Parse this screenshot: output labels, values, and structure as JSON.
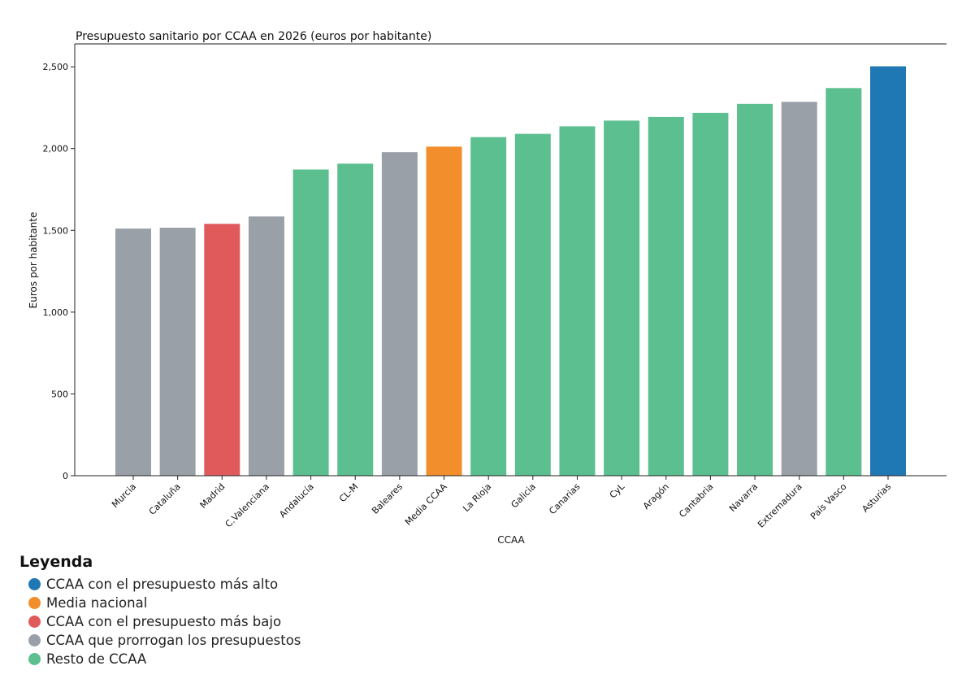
{
  "chart_data": {
    "type": "bar",
    "title": "Presupuesto sanitario por CCAA en 2026 (euros por habitante)",
    "xlabel": "CCAA",
    "ylabel": "Euros por habitante",
    "ylim": [
      0,
      2640
    ],
    "yticks": [
      0,
      500,
      1000,
      1500,
      2000,
      2500
    ],
    "ytick_labels": [
      "0",
      "500",
      "1,000",
      "1,500",
      "2,000",
      "2,500"
    ],
    "grid": false,
    "categories": [
      "Murcia",
      "Cataluña",
      "Madrid",
      "C.Valenciana",
      "Andalucía",
      "CL-M",
      "Baleares",
      "Media CCAA",
      "La Rioja",
      "Galicia",
      "Canarias",
      "CyL",
      "Aragón",
      "Cantabria",
      "Navarra",
      "Extremadura",
      "País Vasco",
      "Asturias"
    ],
    "values": [
      1511,
      1516,
      1540,
      1585,
      1872,
      1908,
      1978,
      2012,
      2070,
      2090,
      2136,
      2171,
      2193,
      2218,
      2273,
      2286,
      2370,
      2503
    ],
    "groups": [
      "gray",
      "gray",
      "red",
      "gray",
      "green",
      "green",
      "gray",
      "orange",
      "green",
      "green",
      "green",
      "green",
      "green",
      "green",
      "green",
      "gray",
      "green",
      "blue"
    ]
  },
  "colors": {
    "blue": "#1f77b4",
    "orange": "#f28e2b",
    "red": "#e05a5c",
    "gray": "#9aa0a8",
    "green": "#5cbf8f"
  },
  "legend": {
    "title": "Leyenda",
    "items": [
      {
        "label": "CCAA con el presupuesto más alto",
        "color": "#1f77b4"
      },
      {
        "label": "Media nacional",
        "color": "#f28e2b"
      },
      {
        "label": "CCAA con el presupuesto más bajo",
        "color": "#e05a5c"
      },
      {
        "label": "CCAA que prorrogan los presupuestos",
        "color": "#9aa0a8"
      },
      {
        "label": "Resto de CCAA",
        "color": "#5cbf8f"
      }
    ]
  }
}
